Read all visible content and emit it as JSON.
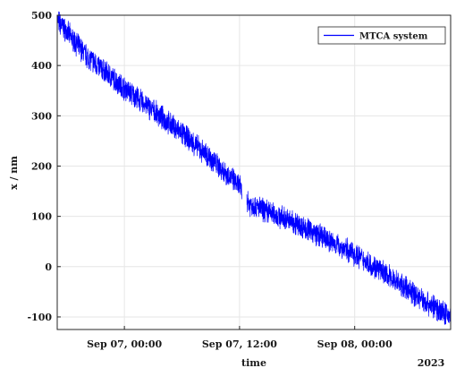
{
  "chart_data": {
    "type": "line",
    "ylabel": "x / nm",
    "xlabel": "time",
    "year_label": "2023",
    "x_ticks": [
      "Sep 07, 00:00",
      "Sep 07, 12:00",
      "Sep 08, 00:00"
    ],
    "y_ticks": [
      -100,
      0,
      100,
      200,
      300,
      400,
      500
    ],
    "ylim": [
      -125,
      500
    ],
    "xlim": [
      "2023-09-06 17:00",
      "2023-09-08 10:00"
    ],
    "grid": true,
    "legend_position": "top-right",
    "series": [
      {
        "name": "MTCA system",
        "color": "#0000ff",
        "noise_amplitude_nm": 20,
        "points": [
          [
            "2023-09-06 17:00",
            490
          ],
          [
            "2023-09-06 20:00",
            420
          ],
          [
            "2023-09-07 00:00",
            355
          ],
          [
            "2023-09-07 03:00",
            310
          ],
          [
            "2023-09-07 06:00",
            265
          ],
          [
            "2023-09-07 09:00",
            215
          ],
          [
            "2023-09-07 12:00",
            160
          ],
          [
            "2023-09-07 13:00",
            125
          ],
          [
            "2023-09-07 18:00",
            85
          ],
          [
            "2023-09-08 00:00",
            25
          ],
          [
            "2023-09-08 04:00",
            -25
          ],
          [
            "2023-09-08 07:00",
            -65
          ],
          [
            "2023-09-08 10:00",
            -100
          ]
        ]
      }
    ]
  }
}
